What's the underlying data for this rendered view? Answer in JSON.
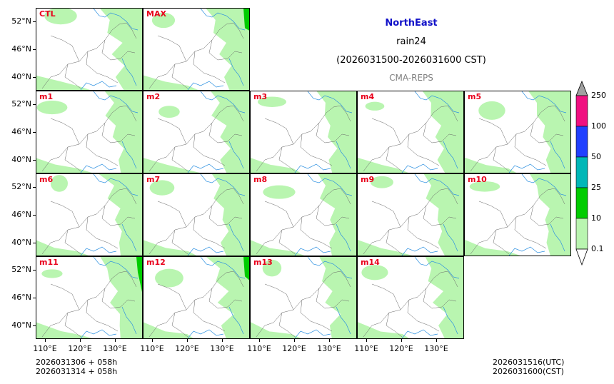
{
  "header": {
    "region": "NorthEast",
    "variable": "rain24",
    "period": "(2026031500-2026031600 CST)",
    "model": "CMA-REPS"
  },
  "panels": [
    {
      "label": "CTL"
    },
    {
      "label": "MAX"
    },
    {
      "label": "m1"
    },
    {
      "label": "m2"
    },
    {
      "label": "m3"
    },
    {
      "label": "m4"
    },
    {
      "label": "m5"
    },
    {
      "label": "m6"
    },
    {
      "label": "m7"
    },
    {
      "label": "m8"
    },
    {
      "label": "m9"
    },
    {
      "label": "m10"
    },
    {
      "label": "m11"
    },
    {
      "label": "m12"
    },
    {
      "label": "m13"
    },
    {
      "label": "m14"
    }
  ],
  "axes": {
    "lat_labels": [
      "52°N",
      "46°N",
      "40°N"
    ],
    "lon_labels": [
      "110°E",
      "120°E",
      "130°E"
    ]
  },
  "colorbar": {
    "levels": [
      "0.1",
      "10",
      "25",
      "50",
      "100",
      "250"
    ],
    "colors": [
      "#ffffff",
      "#b9f5b0",
      "#00cc00",
      "#00b7b7",
      "#2040ff",
      "#f01080",
      "#a0a0a0"
    ]
  },
  "footer": {
    "init_line1": "2026031306  +  058h",
    "init_line2": "2026031314  +  058h",
    "valid_utc": "2026031516(UTC)",
    "valid_cst": "2026031600(CST)"
  },
  "colors": {
    "label": "#e8001b",
    "title": "#1010c8",
    "rain_light": "#b9f5b0",
    "rain_mid": "#00cc00",
    "river": "#2a8fe0",
    "border": "#666666"
  }
}
